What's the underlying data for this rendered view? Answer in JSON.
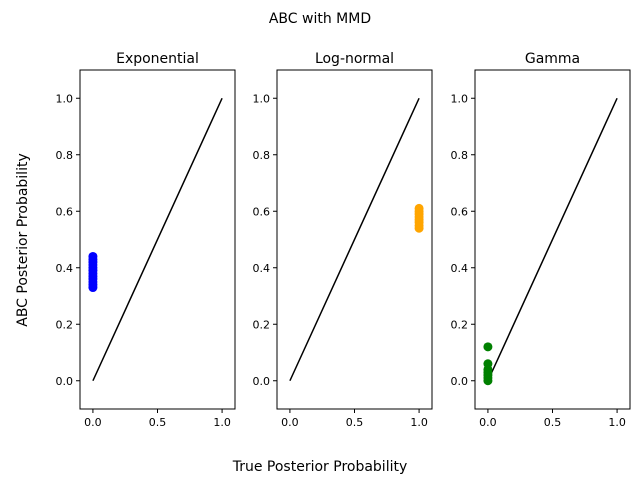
{
  "figure": {
    "suptitle": "ABC with MMD",
    "supxlabel": "True Posterior Probability",
    "supylabel": "ABC Posterior Probability"
  },
  "chart_data": [
    {
      "type": "scatter",
      "title": "Exponential",
      "xlim": [
        -0.1,
        1.1
      ],
      "ylim": [
        -0.1,
        1.1
      ],
      "xticks": [
        "0.0",
        "0.5",
        "1.0"
      ],
      "yticks": [
        "0.0",
        "0.2",
        "0.4",
        "0.6",
        "0.8",
        "1.0"
      ],
      "grid": false,
      "reference_line": {
        "x": [
          0,
          1
        ],
        "y": [
          0,
          1
        ],
        "color": "#000000"
      },
      "color": "#0000ff",
      "points": [
        {
          "x": 0.0,
          "y": 0.33
        },
        {
          "x": 0.0,
          "y": 0.34
        },
        {
          "x": 0.0,
          "y": 0.35
        },
        {
          "x": 0.0,
          "y": 0.36
        },
        {
          "x": 0.0,
          "y": 0.37
        },
        {
          "x": 0.0,
          "y": 0.38
        },
        {
          "x": 0.0,
          "y": 0.39
        },
        {
          "x": 0.0,
          "y": 0.4
        },
        {
          "x": 0.0,
          "y": 0.41
        },
        {
          "x": 0.0,
          "y": 0.42
        },
        {
          "x": 0.0,
          "y": 0.43
        },
        {
          "x": 0.0,
          "y": 0.44
        }
      ]
    },
    {
      "type": "scatter",
      "title": "Log-normal",
      "xlim": [
        -0.1,
        1.1
      ],
      "ylim": [
        -0.1,
        1.1
      ],
      "xticks": [
        "0.0",
        "0.5",
        "1.0"
      ],
      "yticks": [
        "0.0",
        "0.2",
        "0.4",
        "0.6",
        "0.8",
        "1.0"
      ],
      "grid": false,
      "reference_line": {
        "x": [
          0,
          1
        ],
        "y": [
          0,
          1
        ],
        "color": "#000000"
      },
      "color": "#ffa500",
      "points": [
        {
          "x": 1.0,
          "y": 0.54
        },
        {
          "x": 1.0,
          "y": 0.55
        },
        {
          "x": 1.0,
          "y": 0.56
        },
        {
          "x": 1.0,
          "y": 0.57
        },
        {
          "x": 1.0,
          "y": 0.58
        },
        {
          "x": 1.0,
          "y": 0.59
        },
        {
          "x": 1.0,
          "y": 0.6
        },
        {
          "x": 1.0,
          "y": 0.61
        }
      ]
    },
    {
      "type": "scatter",
      "title": "Gamma",
      "xlim": [
        -0.1,
        1.1
      ],
      "ylim": [
        -0.1,
        1.1
      ],
      "xticks": [
        "0.0",
        "0.5",
        "1.0"
      ],
      "yticks": [
        "0.0",
        "0.2",
        "0.4",
        "0.6",
        "0.8",
        "1.0"
      ],
      "grid": false,
      "reference_line": {
        "x": [
          0,
          1
        ],
        "y": [
          0,
          1
        ],
        "color": "#000000"
      },
      "color": "#008000",
      "points": [
        {
          "x": 0.0,
          "y": 0.0
        },
        {
          "x": 0.0,
          "y": 0.01
        },
        {
          "x": 0.0,
          "y": 0.02
        },
        {
          "x": 0.0,
          "y": 0.03
        },
        {
          "x": 0.0,
          "y": 0.04
        },
        {
          "x": 0.0,
          "y": 0.06
        },
        {
          "x": 0.0,
          "y": 0.12
        }
      ]
    }
  ]
}
